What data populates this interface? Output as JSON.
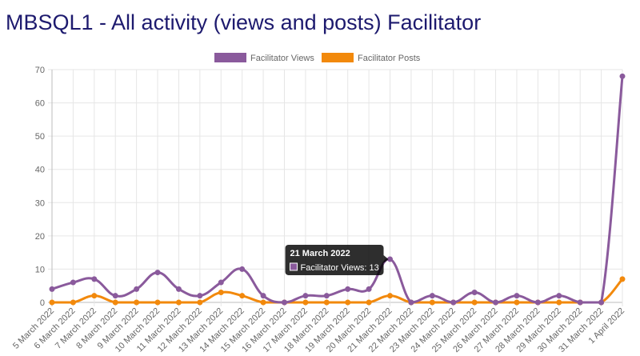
{
  "page": {
    "title": "MBSQL1 - All activity (views and posts) Facilitator"
  },
  "chart_data": {
    "type": "line",
    "title": "",
    "xlabel": "",
    "ylabel": "",
    "ylim": [
      0,
      70
    ],
    "yticks": [
      0,
      10,
      20,
      30,
      40,
      50,
      60,
      70
    ],
    "grid": true,
    "legend_position": "top",
    "categories": [
      "5 March 2022",
      "6 March 2022",
      "7 March 2022",
      "8 March 2022",
      "9 March 2022",
      "10 March 2022",
      "11 March 2022",
      "12 March 2022",
      "13 March 2022",
      "14 March 2022",
      "15 March 2022",
      "16 March 2022",
      "17 March 2022",
      "18 March 2022",
      "19 March 2022",
      "20 March 2022",
      "21 March 2022",
      "22 March 2022",
      "23 March 2022",
      "24 March 2022",
      "25 March 2022",
      "26 March 2022",
      "27 March 2022",
      "28 March 2022",
      "29 March 2022",
      "30 March 2022",
      "31 March 2022",
      "1 April 2022"
    ],
    "series": [
      {
        "name": "Facilitator Views",
        "color": "#8a5a9c",
        "values": [
          4,
          6,
          7,
          2,
          4,
          9,
          4,
          2,
          6,
          10,
          2,
          0,
          2,
          2,
          4,
          4,
          13,
          0,
          2,
          0,
          3,
          0,
          2,
          0,
          2,
          0,
          0,
          68
        ]
      },
      {
        "name": "Facilitator Posts",
        "color": "#f2890c",
        "values": [
          0,
          0,
          2,
          0,
          0,
          0,
          0,
          0,
          3,
          2,
          0,
          0,
          0,
          0,
          0,
          0,
          2,
          0,
          0,
          0,
          0,
          0,
          0,
          0,
          0,
          0,
          0,
          7
        ]
      }
    ],
    "tooltip": {
      "title": "21 March 2022",
      "label": "Facilitator Views: 13",
      "category_index": 16,
      "series_index": 0
    }
  }
}
